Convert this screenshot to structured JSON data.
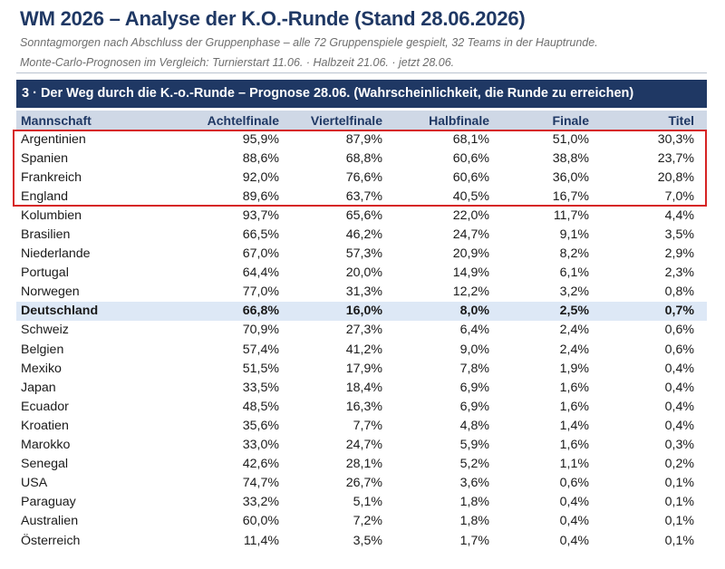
{
  "header": {
    "title": "WM 2026 – Analyse der K.O.-Runde (Stand 28.06.2026)",
    "subtitle_1": "Sonntagmorgen nach Abschluss der Gruppenphase – alle 72 Gruppenspiele gespielt, 32 Teams in der Hauptrunde.",
    "subtitle_2": "Monte-Carlo-Prognosen im Vergleich: Turnierstart 11.06. · Halbzeit 21.06. · jetzt 28.06."
  },
  "section": {
    "title": "3 · Der Weg durch die K.-o.-Runde – Prognose 28.06. (Wahrscheinlichkeit, die Runde zu erreichen)"
  },
  "table": {
    "columns": [
      "Mannschaft",
      "Achtelfinale",
      "Viertelfinale",
      "Halbfinale",
      "Finale",
      "Titel"
    ],
    "rows": [
      {
        "team": "Argentinien",
        "values": [
          "95,9%",
          "87,9%",
          "68,1%",
          "51,0%",
          "30,3%"
        ]
      },
      {
        "team": "Spanien",
        "values": [
          "88,6%",
          "68,8%",
          "60,6%",
          "38,8%",
          "23,7%"
        ]
      },
      {
        "team": "Frankreich",
        "values": [
          "92,0%",
          "76,6%",
          "60,6%",
          "36,0%",
          "20,8%"
        ]
      },
      {
        "team": "England",
        "values": [
          "89,6%",
          "63,7%",
          "40,5%",
          "16,7%",
          "7,0%"
        ]
      },
      {
        "team": "Kolumbien",
        "values": [
          "93,7%",
          "65,6%",
          "22,0%",
          "11,7%",
          "4,4%"
        ]
      },
      {
        "team": "Brasilien",
        "values": [
          "66,5%",
          "46,2%",
          "24,7%",
          "9,1%",
          "3,5%"
        ]
      },
      {
        "team": "Niederlande",
        "values": [
          "67,0%",
          "57,3%",
          "20,9%",
          "8,2%",
          "2,9%"
        ]
      },
      {
        "team": "Portugal",
        "values": [
          "64,4%",
          "20,0%",
          "14,9%",
          "6,1%",
          "2,3%"
        ]
      },
      {
        "team": "Norwegen",
        "values": [
          "77,0%",
          "31,3%",
          "12,2%",
          "3,2%",
          "0,8%"
        ]
      },
      {
        "team": "Deutschland",
        "values": [
          "66,8%",
          "16,0%",
          "8,0%",
          "2,5%",
          "0,7%"
        ],
        "highlight": true
      },
      {
        "team": "Schweiz",
        "values": [
          "70,9%",
          "27,3%",
          "6,4%",
          "2,4%",
          "0,6%"
        ]
      },
      {
        "team": "Belgien",
        "values": [
          "57,4%",
          "41,2%",
          "9,0%",
          "2,4%",
          "0,6%"
        ]
      },
      {
        "team": "Mexiko",
        "values": [
          "51,5%",
          "17,9%",
          "7,8%",
          "1,9%",
          "0,4%"
        ]
      },
      {
        "team": "Japan",
        "values": [
          "33,5%",
          "18,4%",
          "6,9%",
          "1,6%",
          "0,4%"
        ]
      },
      {
        "team": "Ecuador",
        "values": [
          "48,5%",
          "16,3%",
          "6,9%",
          "1,6%",
          "0,4%"
        ]
      },
      {
        "team": "Kroatien",
        "values": [
          "35,6%",
          "7,7%",
          "4,8%",
          "1,4%",
          "0,4%"
        ]
      },
      {
        "team": "Marokko",
        "values": [
          "33,0%",
          "24,7%",
          "5,9%",
          "1,6%",
          "0,3%"
        ]
      },
      {
        "team": "Senegal",
        "values": [
          "42,6%",
          "28,1%",
          "5,2%",
          "1,1%",
          "0,2%"
        ]
      },
      {
        "team": "USA",
        "values": [
          "74,7%",
          "26,7%",
          "3,6%",
          "0,6%",
          "0,1%"
        ]
      },
      {
        "team": "Paraguay",
        "values": [
          "33,2%",
          "5,1%",
          "1,8%",
          "0,4%",
          "0,1%"
        ]
      },
      {
        "team": "Australien",
        "values": [
          "60,0%",
          "7,2%",
          "1,8%",
          "0,4%",
          "0,1%"
        ]
      },
      {
        "team": "Österreich",
        "values": [
          "11,4%",
          "3,5%",
          "1,7%",
          "0,4%",
          "0,1%"
        ]
      }
    ]
  },
  "colors": {
    "title": "#1f3864",
    "section_header_bg": "#1f3864",
    "column_header_bg": "#cfd8e6",
    "highlight_row_bg": "#dde8f6",
    "top4_frame": "#d62424"
  }
}
